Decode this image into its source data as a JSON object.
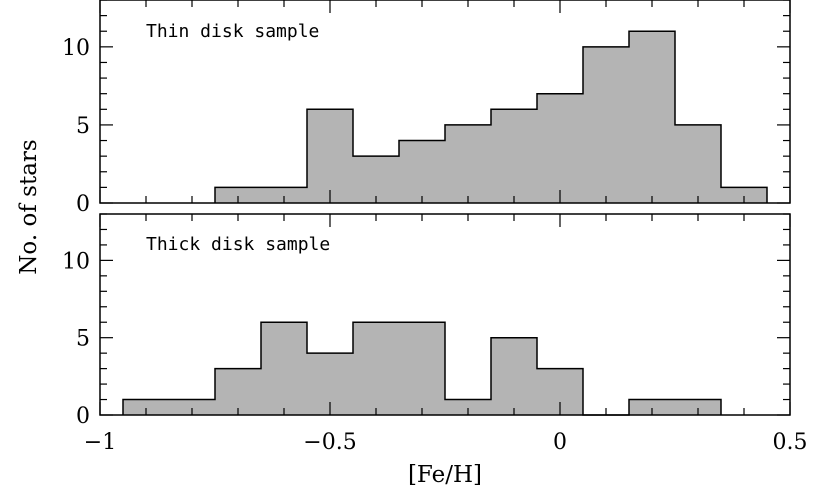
{
  "chart_data": {
    "type": "bar",
    "xlabel": "[Fe/H]",
    "ylabel": "No. of stars",
    "xlim": [
      -1,
      0.5
    ],
    "ylim": [
      0,
      13
    ],
    "bin_width": 0.1,
    "x_ticks": [
      -1,
      -0.5,
      0,
      0.5
    ],
    "x_tick_labels": [
      "−1",
      "−0.5",
      "0",
      "0.5"
    ],
    "y_ticks": [
      0,
      5,
      10
    ],
    "y_tick_labels": [
      "0",
      "5",
      "10"
    ],
    "bar_color": "#b4b4b4",
    "grid": false,
    "panels": [
      {
        "title": "Thin disk sample",
        "bin_starts": [
          -0.75,
          -0.65,
          -0.55,
          -0.45,
          -0.35,
          -0.25,
          -0.15,
          -0.05,
          0.05,
          0.15,
          0.25,
          0.35
        ],
        "values": [
          1,
          1,
          6,
          3,
          4,
          5,
          6,
          7,
          10,
          11,
          5,
          1
        ]
      },
      {
        "title": "Thick disk sample",
        "bin_starts": [
          -0.95,
          -0.85,
          -0.75,
          -0.65,
          -0.55,
          -0.45,
          -0.35,
          -0.25,
          -0.15,
          -0.05,
          0.05,
          0.15,
          0.25
        ],
        "values": [
          1,
          1,
          3,
          6,
          4,
          6,
          6,
          1,
          5,
          3,
          0,
          1,
          1
        ]
      }
    ]
  }
}
